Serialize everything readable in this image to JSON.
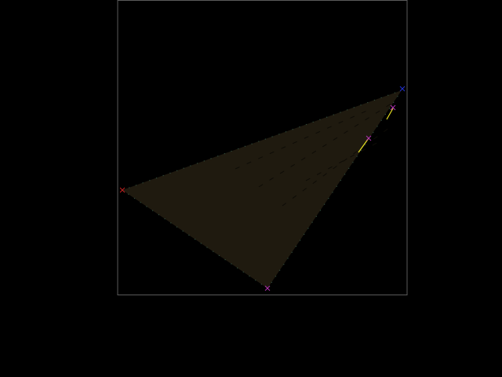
{
  "colors": {
    "background": "#000000",
    "frame_border": "#5a5a5a",
    "triangle_fill": "#1f1a0f",
    "triangle_edge_dots": "#2f4a3a",
    "marker_left": "#c02020",
    "marker_bottom": "#b030b0",
    "marker_top_right": "#2030d0",
    "marker_inner": "#b030b0",
    "segment": "#e6e020"
  },
  "icons": {
    "marker": "x-cross-marker"
  }
}
